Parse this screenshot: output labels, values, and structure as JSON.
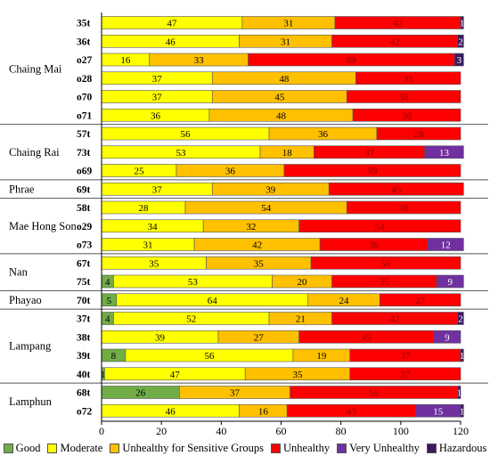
{
  "chart_data": {
    "type": "bar",
    "orientation": "horizontal",
    "stacked": true,
    "x_ticks": [
      "0",
      "20",
      "40",
      "60",
      "80",
      "100",
      "120"
    ],
    "xlim": [
      0,
      120
    ],
    "grid": false,
    "legend_position": "bottom",
    "groups": [
      {
        "name": "Chaing Mai",
        "stations": [
          "35t",
          "36t",
          "o27",
          "o28",
          "o70",
          "o71"
        ]
      },
      {
        "name": "Chaing Rai",
        "stations": [
          "57t",
          "73t",
          "o69"
        ]
      },
      {
        "name": "Phrae",
        "stations": [
          "69t"
        ]
      },
      {
        "name": "Mae Hong Son",
        "stations": [
          "58t",
          "o29",
          "o73"
        ]
      },
      {
        "name": "Nan",
        "stations": [
          "67t",
          "75t"
        ]
      },
      {
        "name": "Phayao",
        "stations": [
          "70t"
        ]
      },
      {
        "name": "Lampang",
        "stations": [
          "37t",
          "38t",
          "39t",
          "40t"
        ]
      },
      {
        "name": "Lamphun",
        "stations": [
          "68t",
          "o72"
        ]
      }
    ],
    "categories": [
      "35t",
      "36t",
      "o27",
      "o28",
      "o70",
      "o71",
      "57t",
      "73t",
      "o69",
      "69t",
      "58t",
      "o29",
      "o73",
      "67t",
      "75t",
      "70t",
      "37t",
      "38t",
      "39t",
      "40t",
      "68t",
      "o72"
    ],
    "series": [
      {
        "name": "Good",
        "color": "#70ad47",
        "values": [
          0,
          0,
          0,
          0,
          0,
          0,
          0,
          0,
          0,
          0,
          0,
          0,
          0,
          0,
          4,
          5,
          4,
          0,
          8,
          1,
          26,
          0
        ]
      },
      {
        "name": "Moderate",
        "color": "#ffff00",
        "values": [
          47,
          46,
          16,
          37,
          37,
          36,
          56,
          53,
          25,
          37,
          28,
          34,
          31,
          35,
          53,
          64,
          52,
          39,
          56,
          47,
          0,
          46
        ]
      },
      {
        "name": "Unhealthy for Sensitive Groups",
        "color": "#ffc000",
        "values": [
          31,
          31,
          33,
          48,
          45,
          48,
          36,
          18,
          36,
          39,
          54,
          32,
          42,
          35,
          20,
          24,
          21,
          27,
          19,
          35,
          37,
          16
        ]
      },
      {
        "name": "Unhealthy",
        "color": "#ff0000",
        "values": [
          42,
          42,
          69,
          35,
          38,
          36,
          28,
          37,
          59,
          45,
          38,
          54,
          36,
          50,
          35,
          27,
          42,
          45,
          37,
          37,
          56,
          43
        ]
      },
      {
        "name": "Very Unhealthy",
        "color": "#7030a0",
        "values": [
          0,
          0,
          0,
          0,
          0,
          0,
          0,
          13,
          0,
          0,
          0,
          0,
          12,
          0,
          9,
          0,
          0,
          9,
          0,
          0,
          0,
          15
        ]
      },
      {
        "name": "Hazardous",
        "color": "#3a1a5e",
        "values": [
          1,
          2,
          3,
          0,
          0,
          0,
          0,
          0,
          0,
          0,
          0,
          0,
          0,
          0,
          0,
          0,
          2,
          0,
          1,
          0,
          1,
          1
        ]
      }
    ]
  }
}
